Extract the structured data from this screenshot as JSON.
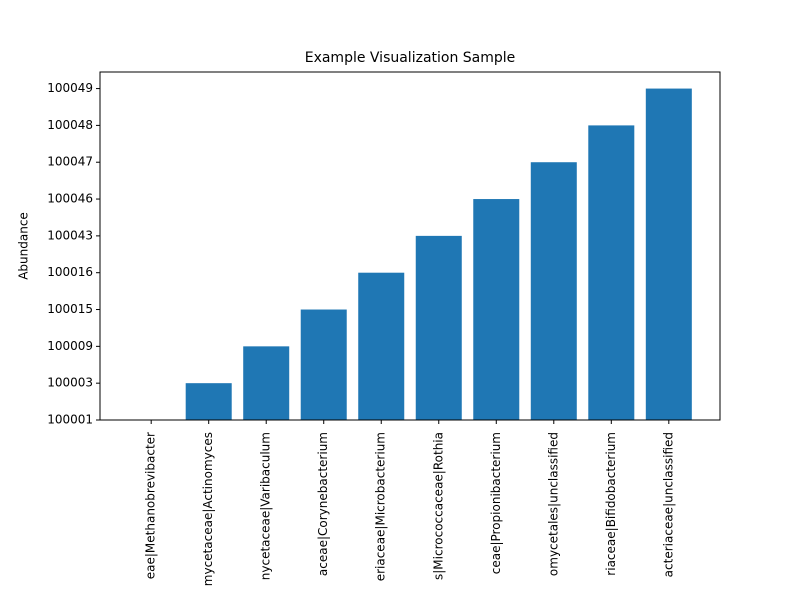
{
  "chart_data": {
    "type": "bar",
    "title": "Example Visualization Sample",
    "y_label": "Abundance",
    "categories": [
      "eae|Methanobrevibacter",
      "mycetaceae|Actinomyces",
      "nycetaceae|Varibaculum",
      "aceae|Corynebacterium",
      "eriaceae|Microbacterium",
      "s|Micrococcaceae|Rothia",
      "ceae|Propionibacterium",
      "omycetales|unclassified",
      "riaceae|Bifidobacterium",
      "acteriaceae|unclassified"
    ],
    "values": [
      100001,
      100003,
      100009,
      100015,
      100016,
      100043,
      100046,
      100047,
      100048,
      100049
    ],
    "color": "#1f77b4",
    "categorical_y": true,
    "yticks": [
      100001,
      100003,
      100009,
      100015,
      100016,
      100043,
      100046,
      100047,
      100048,
      100049
    ]
  }
}
